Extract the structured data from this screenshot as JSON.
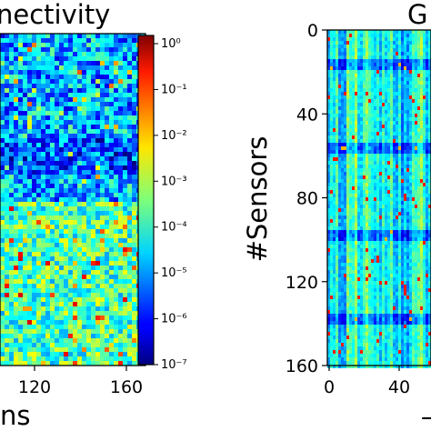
{
  "chart_data": [
    {
      "type": "heatmap",
      "title": "nectivity",
      "xlabel": "ns",
      "x_ticks": [
        "120",
        "160"
      ],
      "colorbar": {
        "scale": "log",
        "range": [
          1e-07,
          1
        ],
        "tick_labels": [
          "10⁰",
          "10⁻¹",
          "10⁻²",
          "10⁻³",
          "10⁻⁴",
          "10⁻⁵",
          "10⁻⁶",
          "10⁻⁷"
        ],
        "colormap": "jet"
      },
      "values_note": ""
    },
    {
      "type": "heatmap",
      "title": "G",
      "ylabel": "#Sensors",
      "y_ticks": [
        "0",
        "40",
        "80",
        "120",
        "160"
      ],
      "x_ticks": [
        "0",
        "40"
      ],
      "ylim": [
        0,
        160
      ],
      "colormap": "jet"
    }
  ],
  "colors": {
    "jet_low": "#00007f",
    "jet_mid": "#7fff7f",
    "jet_high": "#7f0000"
  }
}
